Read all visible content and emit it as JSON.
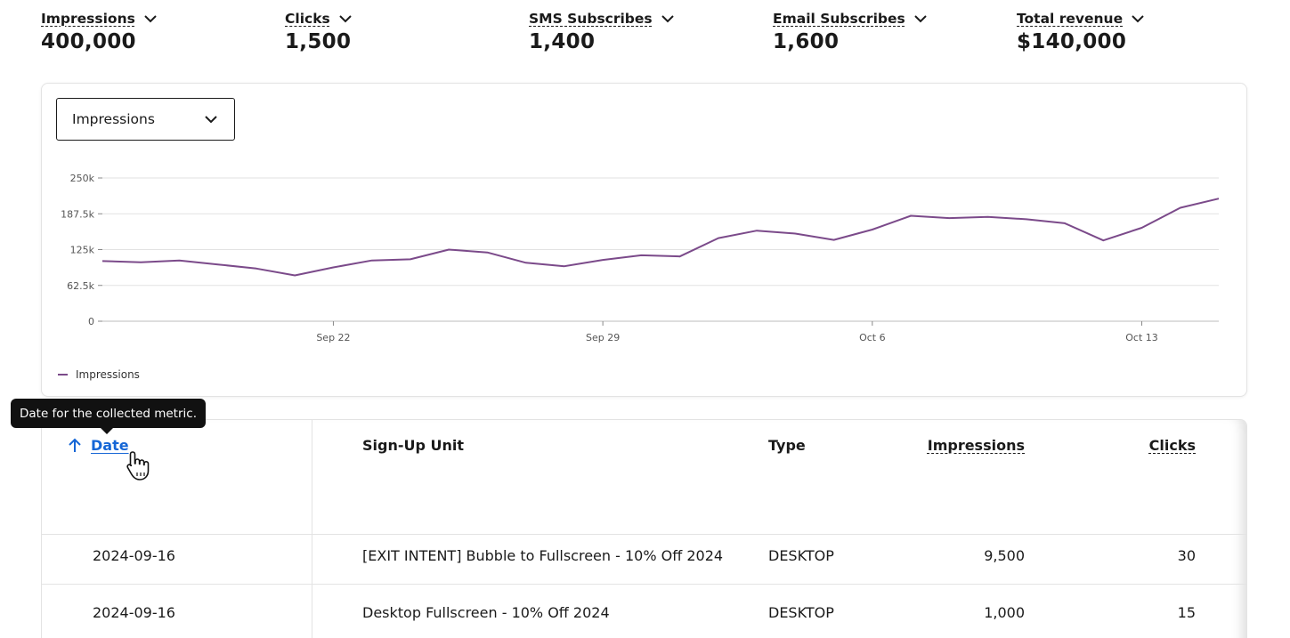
{
  "metrics": [
    {
      "label": "Impressions",
      "value": "400,000"
    },
    {
      "label": "Clicks",
      "value": "1,500"
    },
    {
      "label": "SMS Subscribes",
      "value": "1,400"
    },
    {
      "label": "Email Subscribes",
      "value": "1,600"
    },
    {
      "label": "Total revenue",
      "value": "$140,000"
    }
  ],
  "chart": {
    "selector_value": "Impressions",
    "legend": "Impressions"
  },
  "chart_data": {
    "type": "line",
    "series": [
      {
        "name": "Impressions",
        "color": "#7b4a8a",
        "x": [
          "2024-09-16",
          "2024-09-17",
          "2024-09-18",
          "2024-09-19",
          "2024-09-20",
          "2024-09-21",
          "2024-09-22",
          "2024-09-23",
          "2024-09-24",
          "2024-09-25",
          "2024-09-26",
          "2024-09-27",
          "2024-09-28",
          "2024-09-29",
          "2024-09-30",
          "2024-10-01",
          "2024-10-02",
          "2024-10-03",
          "2024-10-04",
          "2024-10-05",
          "2024-10-06",
          "2024-10-07",
          "2024-10-08",
          "2024-10-09",
          "2024-10-10",
          "2024-10-11",
          "2024-10-12",
          "2024-10-13",
          "2024-10-14",
          "2024-10-15"
        ],
        "values": [
          105000,
          103000,
          106000,
          99000,
          92000,
          80000,
          94000,
          106000,
          108000,
          125000,
          120000,
          102000,
          96000,
          107000,
          115000,
          113000,
          145000,
          158000,
          153000,
          142000,
          160000,
          184000,
          180000,
          182000,
          178000,
          171000,
          141000,
          163000,
          198000,
          214000
        ]
      }
    ],
    "x_ticks": [
      "Sep 22",
      "Sep 29",
      "Oct 6",
      "Oct 13"
    ],
    "y_ticks": [
      "0",
      "62.5k",
      "125k",
      "187.5k",
      "250k"
    ],
    "ylim": [
      0,
      250000
    ],
    "grid": true,
    "legend_position": "bottom-left"
  },
  "tooltip": "Date for the collected metric.",
  "table": {
    "headers": {
      "date": "Date",
      "unit": "Sign-Up Unit",
      "type": "Type",
      "impressions": "Impressions",
      "clicks": "Clicks"
    },
    "rows": [
      {
        "date": "2024-09-16",
        "unit": "[EXIT INTENT] Bubble to Fullscreen - 10% Off 2024",
        "type": "DESKTOP",
        "impressions": "9,500",
        "clicks": "30"
      },
      {
        "date": "2024-09-16",
        "unit": "Desktop Fullscreen - 10% Off 2024",
        "type": "DESKTOP",
        "impressions": "1,000",
        "clicks": "15"
      }
    ]
  }
}
